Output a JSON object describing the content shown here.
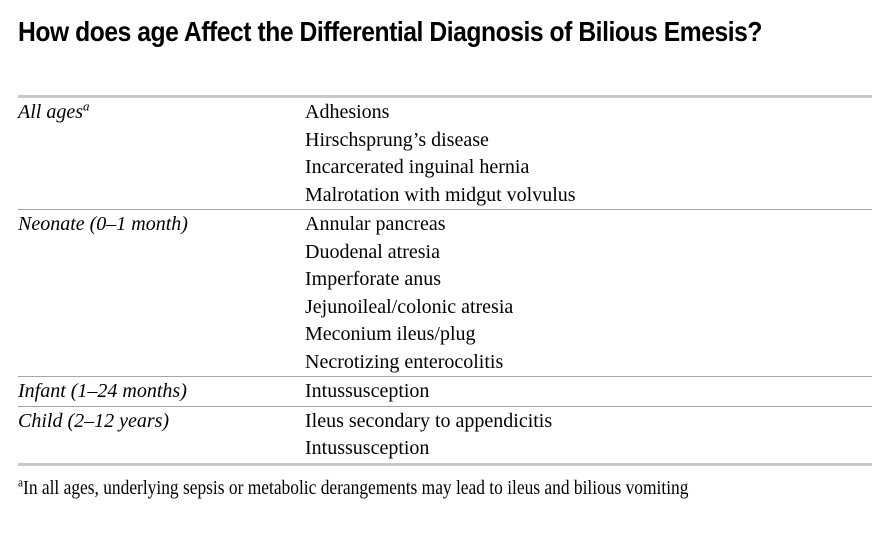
{
  "title": "How does age Affect the Differential Diagnosis of Bilious Emesis?",
  "table": {
    "sections": [
      {
        "age_group": "All ages",
        "age_group_sup": "a",
        "diagnoses": [
          "Adhesions",
          "Hirschsprung’s disease",
          "Incarcerated inguinal hernia",
          "Malrotation with midgut volvulus"
        ]
      },
      {
        "age_group": "Neonate (0–1 month)",
        "diagnoses": [
          "Annular pancreas",
          "Duodenal atresia",
          "Imperforate anus",
          "Jejunoileal/colonic atresia",
          "Meconium ileus/plug",
          "Necrotizing enterocolitis"
        ]
      },
      {
        "age_group": "Infant (1–24 months)",
        "diagnoses": [
          "Intussusception"
        ]
      },
      {
        "age_group": "Child (2–12 years)",
        "diagnoses": [
          "Ileus secondary to appendicitis",
          "Intussusception"
        ]
      }
    ]
  },
  "footnote": {
    "sup": "a",
    "text": "In all ages, underlying sepsis or metabolic derangements may lead to ileus and bilious vomiting"
  },
  "colors": {
    "background": "#ffffff",
    "text": "#000000",
    "rule_outer": "#c9c9c9",
    "rule_inner": "#a6a6a6"
  }
}
